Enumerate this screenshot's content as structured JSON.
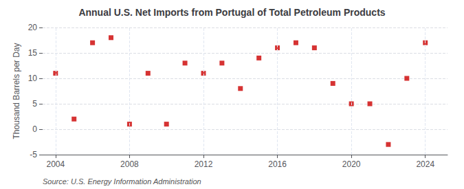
{
  "chart_data": {
    "type": "scatter",
    "title": "Annual U.S. Net Imports from Portugal of Total Petroleum Products",
    "ylabel": "Thousand Barrels per Day",
    "annotation": "Source: U.S. Energy Information Administration",
    "x": [
      2004,
      2005,
      2006,
      2007,
      2008,
      2009,
      2010,
      2011,
      2012,
      2013,
      2014,
      2015,
      2016,
      2017,
      2018,
      2019,
      2020,
      2021,
      2022,
      2023,
      2024
    ],
    "values": [
      11,
      2,
      17,
      18,
      1,
      11,
      1,
      13,
      11,
      13,
      8,
      14,
      16,
      17,
      16,
      9,
      5,
      5,
      -3,
      10,
      17
    ],
    "color": "#cc0000",
    "marker": "square",
    "xlim": [
      2003.3,
      2025.2
    ],
    "xticks": [
      2004,
      2008,
      2012,
      2016,
      2020,
      2024
    ],
    "ylim": [
      -5,
      20
    ],
    "yticks": [
      -5,
      0,
      5,
      10,
      15,
      20
    ],
    "grid": true
  }
}
